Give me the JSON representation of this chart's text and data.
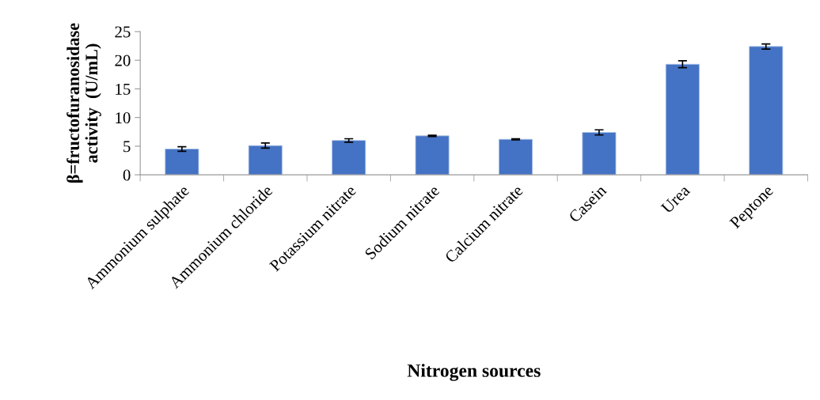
{
  "chart_data": {
    "type": "bar",
    "xlabel": "Nitrogen sources",
    "ylabel": "β=fructofuranosidase\nactivity  (U/mL)",
    "categories": [
      "Ammonium sulphate",
      "Ammonium chloride",
      "Potassium nitrate",
      "Sodium nitrate",
      "Calcium nitrate",
      "Casein",
      "Urea",
      "Peptone"
    ],
    "values": [
      4.5,
      5.1,
      6.0,
      6.8,
      6.2,
      7.4,
      19.3,
      22.4
    ],
    "errors": [
      0.4,
      0.45,
      0.3,
      0.1,
      0.1,
      0.45,
      0.6,
      0.45
    ],
    "color": "#4472c4",
    "ylim": [
      0,
      25
    ],
    "yticks": [
      0,
      5,
      10,
      15,
      20,
      25
    ],
    "grid": false,
    "legend": false
  }
}
